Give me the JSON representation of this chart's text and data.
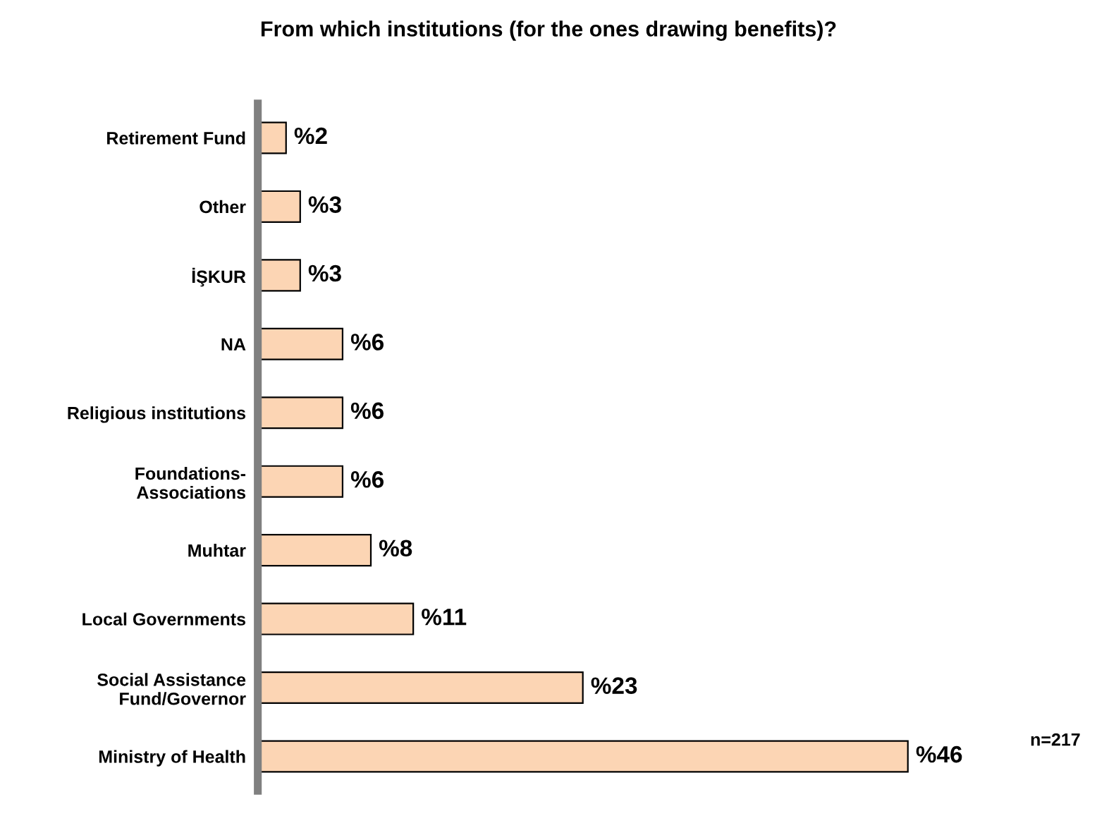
{
  "chart_data": {
    "type": "bar",
    "orientation": "horizontal",
    "title": "From which institutions (for the ones drawing benefits)?",
    "categories": [
      "Retirement Fund",
      "Other",
      "İŞKUR",
      "NA",
      "Religious institutions",
      "Foundations-\nAssociations",
      "Muhtar",
      "Local Governments",
      "Social Assistance\nFund/Governor",
      "Ministry of Health"
    ],
    "values": [
      2,
      3,
      3,
      6,
      6,
      6,
      8,
      11,
      23,
      46
    ],
    "value_labels": [
      "%2",
      "%3",
      "%3",
      "%6",
      "%6",
      "%6",
      "%8",
      "%11",
      "%23",
      "%46"
    ],
    "color": "#fcd5b4",
    "annotations": [
      "n=217"
    ],
    "grid": false,
    "legend": false
  }
}
